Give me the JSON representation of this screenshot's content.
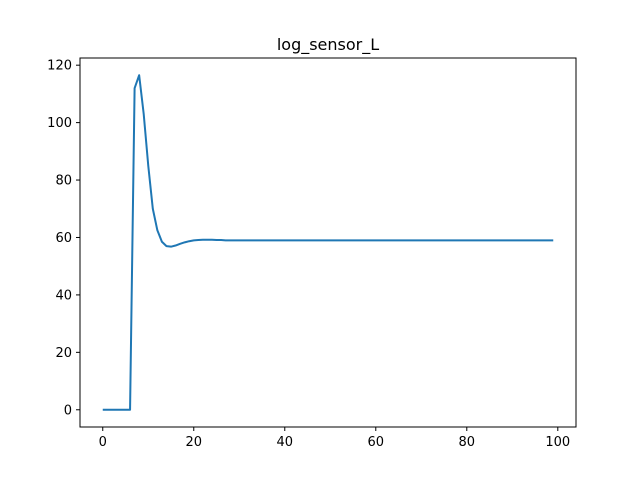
{
  "chart_data": {
    "type": "line",
    "title": "log_sensor_L",
    "xlabel": "",
    "ylabel": "",
    "xlim": [
      -5,
      104
    ],
    "ylim": [
      -6,
      122.5
    ],
    "grid": false,
    "x_ticks": [
      0,
      20,
      40,
      60,
      80,
      100
    ],
    "y_ticks": [
      0,
      20,
      40,
      60,
      80,
      100,
      120
    ],
    "line_color": "#1f77b4",
    "series": [
      {
        "x": [
          0,
          1,
          2,
          3,
          4,
          5,
          6,
          7,
          8,
          9,
          10,
          11,
          12,
          13,
          14,
          15,
          16,
          17,
          18,
          19,
          20,
          21,
          22,
          23,
          24,
          25,
          26,
          27,
          28,
          29,
          30,
          35,
          40,
          50,
          60,
          70,
          80,
          90,
          99
        ],
        "values": [
          0,
          0,
          0,
          0,
          0,
          0,
          0,
          112,
          116.5,
          103,
          85,
          70,
          62.5,
          58.5,
          57,
          56.8,
          57.2,
          57.8,
          58.3,
          58.7,
          59,
          59.1,
          59.2,
          59.2,
          59.2,
          59.1,
          59.1,
          59,
          59,
          59,
          59,
          59,
          59,
          59,
          59,
          59,
          59,
          59,
          59
        ]
      }
    ]
  }
}
